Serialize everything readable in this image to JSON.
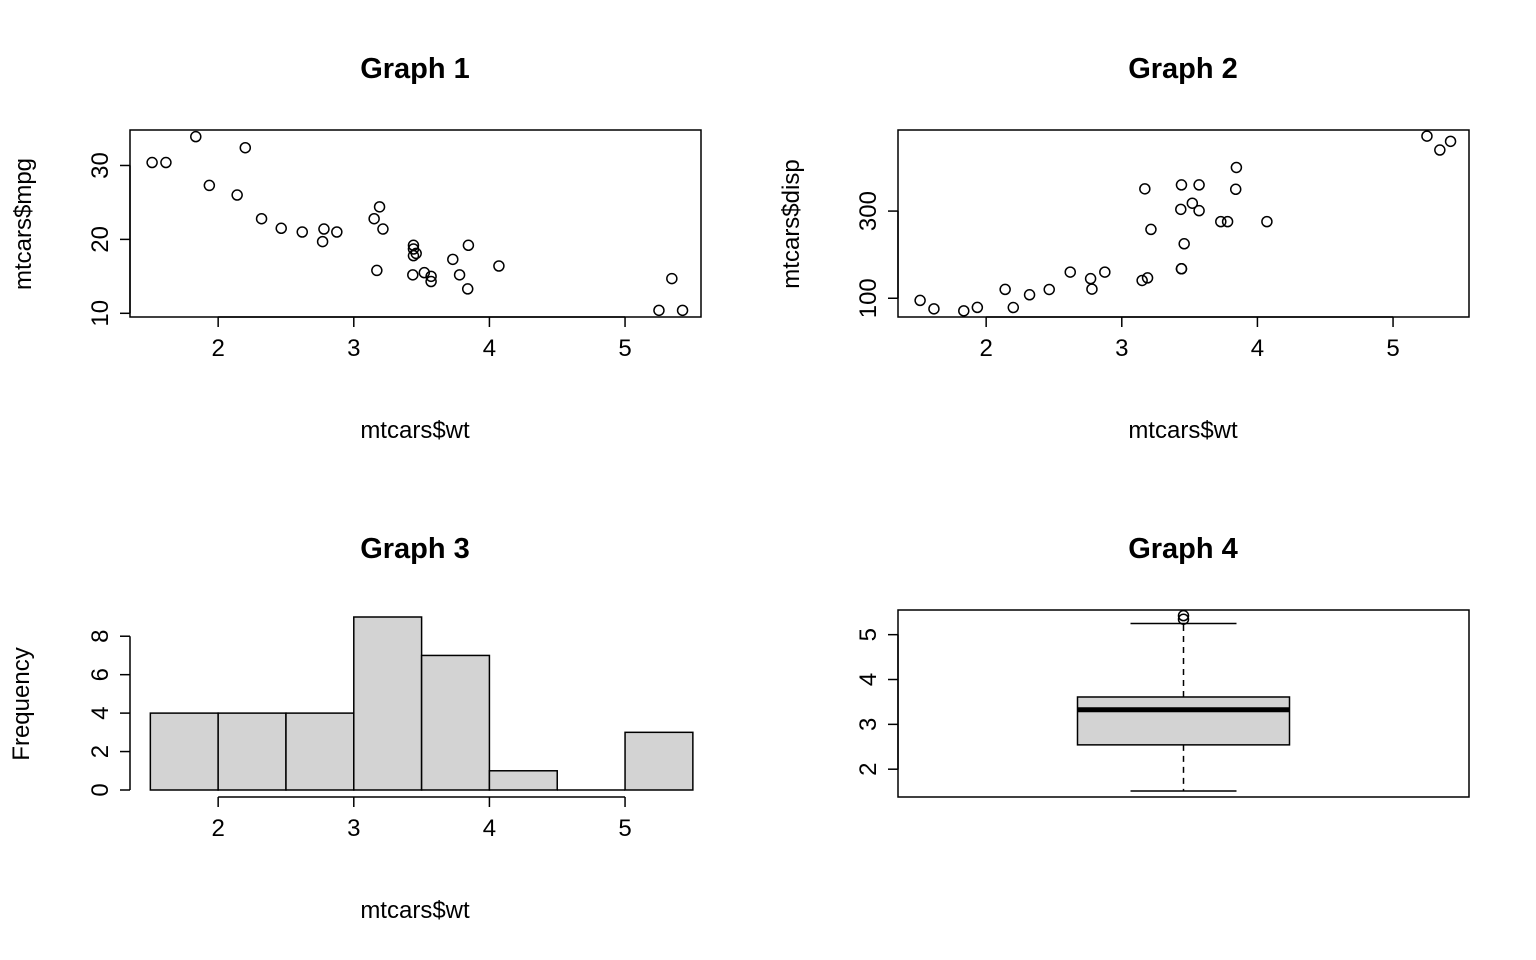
{
  "chart_data": [
    {
      "type": "scatter",
      "title": "Graph 1",
      "xlabel": "mtcars$wt",
      "ylabel": "mtcars$mpg",
      "xlim": [
        1.35,
        5.56
      ],
      "ylim": [
        9.5,
        34.8
      ],
      "xticks": [
        "2",
        "3",
        "4",
        "5"
      ],
      "yticks": [
        "10",
        "20",
        "30"
      ],
      "x": [
        2.62,
        2.875,
        2.32,
        3.215,
        3.44,
        3.46,
        3.57,
        3.19,
        3.15,
        3.44,
        3.44,
        4.07,
        3.73,
        3.78,
        5.25,
        5.424,
        5.345,
        2.2,
        1.615,
        1.835,
        2.465,
        3.52,
        3.435,
        3.84,
        3.845,
        1.935,
        2.14,
        1.513,
        3.17,
        2.77,
        3.57,
        2.78
      ],
      "y": [
        21.0,
        21.0,
        22.8,
        21.4,
        18.7,
        18.1,
        14.3,
        24.4,
        22.8,
        19.2,
        17.8,
        16.4,
        17.3,
        15.2,
        10.4,
        10.4,
        14.7,
        32.4,
        30.4,
        33.9,
        21.5,
        15.5,
        15.2,
        13.3,
        19.2,
        27.3,
        26.0,
        30.4,
        15.8,
        19.7,
        15.0,
        21.4
      ],
      "grid": false
    },
    {
      "type": "scatter",
      "title": "Graph 2",
      "xlabel": "mtcars$wt",
      "ylabel": "mtcars$disp",
      "xlim": [
        1.35,
        5.56
      ],
      "ylim": [
        57.0,
        486.0
      ],
      "xticks": [
        "2",
        "3",
        "4",
        "5"
      ],
      "yticks": [
        "100",
        "300"
      ],
      "x": [
        2.62,
        2.875,
        2.32,
        3.215,
        3.44,
        3.46,
        3.57,
        3.19,
        3.15,
        3.44,
        3.44,
        4.07,
        3.73,
        3.78,
        5.25,
        5.424,
        5.345,
        2.2,
        1.615,
        1.835,
        2.465,
        3.52,
        3.435,
        3.84,
        3.845,
        1.935,
        2.14,
        1.513,
        3.17,
        2.77,
        3.57,
        2.78
      ],
      "y": [
        160,
        160,
        108,
        258,
        360,
        225,
        360,
        146.7,
        140.8,
        167.6,
        167.6,
        275.8,
        275.8,
        275.8,
        472,
        460,
        440,
        78.7,
        75.7,
        71.1,
        120.1,
        318,
        304,
        350,
        400,
        79,
        120.3,
        95.1,
        351,
        145,
        301,
        121
      ],
      "grid": false
    },
    {
      "type": "bar",
      "subtype": "histogram",
      "title": "Graph 3",
      "xlabel": "mtcars$wt",
      "ylabel": "Frequency",
      "bin_edges": [
        1.5,
        2.0,
        2.5,
        3.0,
        3.5,
        4.0,
        4.5,
        5.0,
        5.5
      ],
      "values": [
        4,
        4,
        4,
        9,
        7,
        1,
        0,
        3
      ],
      "xlim": [
        1.35,
        5.56
      ],
      "ylim": [
        0,
        9
      ],
      "xticks": [
        "2",
        "3",
        "4",
        "5"
      ],
      "yticks": [
        "0",
        "2",
        "4",
        "6",
        "8"
      ],
      "fill_color": "#d3d3d3"
    },
    {
      "type": "box",
      "title": "Graph 4",
      "ylim": [
        1.38,
        5.55
      ],
      "yticks": [
        "2",
        "3",
        "4",
        "5"
      ],
      "whisker_low": 1.513,
      "q1": 2.5425,
      "median": 3.325,
      "q3": 3.61,
      "whisker_high": 5.25,
      "outliers": [
        5.424,
        5.345
      ],
      "fill_color": "#d3d3d3"
    }
  ]
}
